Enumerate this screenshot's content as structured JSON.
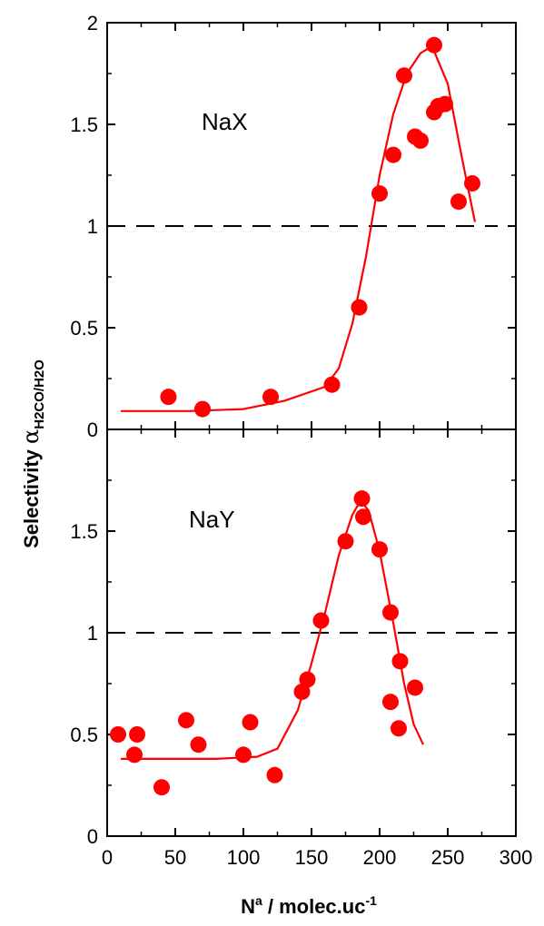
{
  "chart_data": {
    "type": "scatter",
    "shared_x_axis": {
      "label_base": "N",
      "label_sup": "a",
      "label_rest": " / molec.uc",
      "label_sup2": "-1",
      "lim": [
        0,
        300
      ],
      "ticks": [
        "0",
        "50",
        "100",
        "150",
        "200",
        "250",
        "300"
      ]
    },
    "shared_y_axis": {
      "label_main": "Selectivity ",
      "label_alpha": "α",
      "label_sub": "H2CO/H2O"
    },
    "grid": false,
    "colors": {
      "marker": "#ff0000",
      "line": "#ff0000",
      "reference": "#000000",
      "axis": "#000000"
    },
    "panels": [
      {
        "name": "NaX",
        "ylim": [
          0,
          2
        ],
        "yticks": [
          "0",
          "0.5",
          "1",
          "1.5",
          "2"
        ],
        "reference_line_y": 1,
        "points": [
          [
            45,
            0.16
          ],
          [
            70,
            0.1
          ],
          [
            120,
            0.16
          ],
          [
            165,
            0.22
          ],
          [
            185,
            0.6
          ],
          [
            200,
            1.16
          ],
          [
            210,
            1.35
          ],
          [
            218,
            1.74
          ],
          [
            226,
            1.44
          ],
          [
            230,
            1.42
          ],
          [
            240,
            1.89
          ],
          [
            240,
            1.56
          ],
          [
            243,
            1.59
          ],
          [
            248,
            1.6
          ],
          [
            258,
            1.12
          ],
          [
            268,
            1.21
          ]
        ],
        "fit_line": [
          [
            10,
            0.09
          ],
          [
            60,
            0.09
          ],
          [
            100,
            0.1
          ],
          [
            130,
            0.14
          ],
          [
            160,
            0.21
          ],
          [
            170,
            0.3
          ],
          [
            180,
            0.52
          ],
          [
            190,
            0.85
          ],
          [
            200,
            1.25
          ],
          [
            210,
            1.55
          ],
          [
            220,
            1.75
          ],
          [
            230,
            1.85
          ],
          [
            235,
            1.87
          ],
          [
            240,
            1.86
          ],
          [
            250,
            1.7
          ],
          [
            260,
            1.35
          ],
          [
            266,
            1.15
          ],
          [
            270,
            1.02
          ]
        ]
      },
      {
        "name": "NaY",
        "ylim": [
          0,
          2
        ],
        "yticks": [
          "0",
          "0.5",
          "1",
          "1.5"
        ],
        "reference_line_y": 1,
        "points": [
          [
            8,
            0.5
          ],
          [
            20,
            0.4
          ],
          [
            22,
            0.5
          ],
          [
            40,
            0.24
          ],
          [
            58,
            0.57
          ],
          [
            67,
            0.45
          ],
          [
            100,
            0.4
          ],
          [
            105,
            0.56
          ],
          [
            123,
            0.3
          ],
          [
            143,
            0.71
          ],
          [
            147,
            0.77
          ],
          [
            157,
            1.06
          ],
          [
            175,
            1.45
          ],
          [
            187,
            1.66
          ],
          [
            188,
            1.57
          ],
          [
            200,
            1.41
          ],
          [
            208,
            1.1
          ],
          [
            208,
            0.66
          ],
          [
            214,
            0.53
          ],
          [
            215,
            0.86
          ],
          [
            226,
            0.73
          ]
        ],
        "fit_line": [
          [
            10,
            0.38
          ],
          [
            80,
            0.38
          ],
          [
            110,
            0.39
          ],
          [
            125,
            0.43
          ],
          [
            140,
            0.62
          ],
          [
            150,
            0.85
          ],
          [
            160,
            1.1
          ],
          [
            170,
            1.38
          ],
          [
            180,
            1.58
          ],
          [
            186,
            1.65
          ],
          [
            192,
            1.6
          ],
          [
            200,
            1.4
          ],
          [
            210,
            1.05
          ],
          [
            218,
            0.75
          ],
          [
            225,
            0.55
          ],
          [
            232,
            0.45
          ]
        ]
      }
    ]
  }
}
